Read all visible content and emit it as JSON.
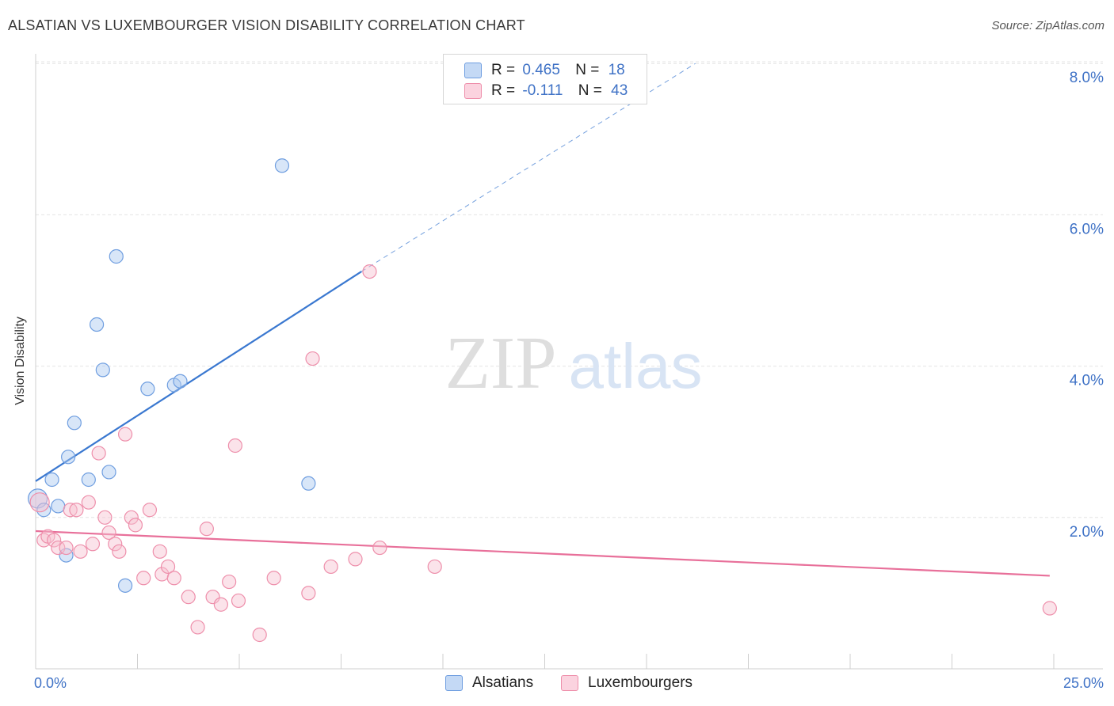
{
  "title": "ALSATIAN VS LUXEMBOURGER VISION DISABILITY CORRELATION CHART",
  "source": "Source: ZipAtlas.com",
  "watermark": {
    "zip": "ZIP",
    "atlas": "atlas"
  },
  "legend": {
    "r_label": "R =",
    "n_label": "N =",
    "alsatians": {
      "r": "0.465",
      "n": "18",
      "color": "#a9c8f0",
      "border": "#6f9ee0"
    },
    "luxembourgers": {
      "r": "-0.111",
      "n": "43",
      "color": "#f7c0d0",
      "border": "#ee8fab"
    }
  },
  "bottom_legend": {
    "alsatians": "Alsatians",
    "luxembourgers": "Luxembourgers"
  },
  "chart_data": {
    "type": "scatter",
    "title": "ALSATIAN VS LUXEMBOURGER VISION DISABILITY CORRELATION CHART",
    "xlabel": "",
    "ylabel": "Vision Disability",
    "xlim": [
      0,
      25
    ],
    "ylim": [
      0,
      8.2
    ],
    "x_tick_labels": {
      "min": "0.0%",
      "max": "25.0%"
    },
    "y_ticks": [
      {
        "value": 2,
        "label": "2.0%"
      },
      {
        "value": 4,
        "label": "4.0%"
      },
      {
        "value": 6,
        "label": "6.0%"
      },
      {
        "value": 8,
        "label": "8.0%"
      }
    ],
    "grid": true,
    "series": [
      {
        "name": "Alsatians",
        "color": "#3a78d0",
        "points": [
          [
            0.05,
            2.25
          ],
          [
            0.2,
            2.1
          ],
          [
            0.4,
            2.5
          ],
          [
            0.55,
            2.15
          ],
          [
            0.75,
            1.5
          ],
          [
            0.8,
            2.8
          ],
          [
            0.95,
            3.25
          ],
          [
            1.3,
            2.5
          ],
          [
            1.5,
            4.55
          ],
          [
            1.65,
            3.95
          ],
          [
            1.8,
            2.6
          ],
          [
            1.98,
            5.45
          ],
          [
            2.2,
            1.1
          ],
          [
            2.75,
            3.7
          ],
          [
            3.4,
            3.75
          ],
          [
            3.55,
            3.8
          ],
          [
            6.05,
            6.65
          ],
          [
            6.7,
            2.45
          ]
        ],
        "trend": {
          "x0": 0.0,
          "y0": 2.48,
          "x1": 8.0,
          "y1": 5.25,
          "dash_to_x": 16.2,
          "dash_to_y": 8.0
        }
      },
      {
        "name": "Luxembourgers",
        "color": "#e8709a",
        "points": [
          [
            0.1,
            2.2
          ],
          [
            0.2,
            1.7
          ],
          [
            0.3,
            1.75
          ],
          [
            0.45,
            1.7
          ],
          [
            0.55,
            1.6
          ],
          [
            0.75,
            1.6
          ],
          [
            0.85,
            2.1
          ],
          [
            1.0,
            2.1
          ],
          [
            1.1,
            1.55
          ],
          [
            1.3,
            2.2
          ],
          [
            1.4,
            1.65
          ],
          [
            1.55,
            2.85
          ],
          [
            1.7,
            2.0
          ],
          [
            1.8,
            1.8
          ],
          [
            1.95,
            1.65
          ],
          [
            2.05,
            1.55
          ],
          [
            2.2,
            3.1
          ],
          [
            2.35,
            2.0
          ],
          [
            2.45,
            1.9
          ],
          [
            2.65,
            1.2
          ],
          [
            2.8,
            2.1
          ],
          [
            3.05,
            1.55
          ],
          [
            3.1,
            1.25
          ],
          [
            3.25,
            1.35
          ],
          [
            3.4,
            1.2
          ],
          [
            3.75,
            0.95
          ],
          [
            3.98,
            0.55
          ],
          [
            4.2,
            1.85
          ],
          [
            4.35,
            0.95
          ],
          [
            4.55,
            0.85
          ],
          [
            4.75,
            1.15
          ],
          [
            4.9,
            2.95
          ],
          [
            4.98,
            0.9
          ],
          [
            5.5,
            0.45
          ],
          [
            5.85,
            1.2
          ],
          [
            6.7,
            1.0
          ],
          [
            6.8,
            4.1
          ],
          [
            7.25,
            1.35
          ],
          [
            7.85,
            1.45
          ],
          [
            8.2,
            5.25
          ],
          [
            8.45,
            1.6
          ],
          [
            9.8,
            1.35
          ],
          [
            24.9,
            0.8
          ]
        ],
        "trend": {
          "x0": 0.0,
          "y0": 1.82,
          "x1": 24.9,
          "y1": 1.23
        }
      }
    ]
  }
}
